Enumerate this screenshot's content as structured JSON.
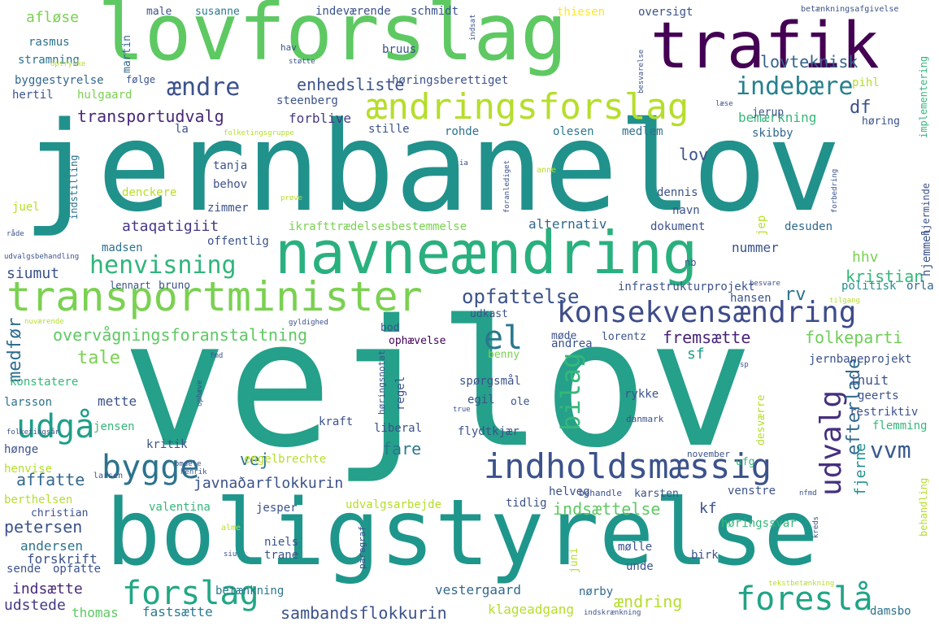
{
  "words": [
    {
      "text": "jernbanelov",
      "color": "#21918c"
    },
    {
      "text": "vejlov",
      "color": "#25a08a"
    },
    {
      "text": "boligstyrelse",
      "color": "#1f968b"
    },
    {
      "text": "lovforslag",
      "color": "#5ec962"
    },
    {
      "text": "trafik",
      "color": "#440154"
    },
    {
      "text": "navneændring",
      "color": "#2ab07f"
    },
    {
      "text": "transportminister",
      "color": "#7ad151"
    },
    {
      "text": "ændringsforslag",
      "color": "#b5de2b"
    },
    {
      "text": "indholdsmæssig",
      "color": "#3b528b"
    },
    {
      "text": "konsekvensændring",
      "color": "#3e4c8a"
    },
    {
      "text": "foreslå",
      "color": "#20a486"
    },
    {
      "text": "forslag",
      "color": "#22a785"
    },
    {
      "text": "bygge",
      "color": "#2c728e"
    },
    {
      "text": "udgå",
      "color": "#1f9e89"
    },
    {
      "text": "henvisning",
      "color": "#31b57b"
    },
    {
      "text": "el",
      "color": "#2a788e"
    },
    {
      "text": "ændre",
      "color": "#3b528b"
    },
    {
      "text": "indebære",
      "color": "#26818e"
    },
    {
      "text": "udvalg",
      "color": "#46307e"
    },
    {
      "text": "bilag",
      "color": "#35b779"
    },
    {
      "text": "efterlade",
      "color": "#31688e"
    },
    {
      "text": "overvågningsforanstaltning",
      "color": "#5ec962"
    },
    {
      "text": "opfattelse",
      "color": "#3b528b"
    },
    {
      "text": "vvm",
      "color": "#38598c"
    },
    {
      "text": "tale",
      "color": "#7ad151"
    },
    {
      "text": "medfør",
      "color": "#2e6e8e"
    },
    {
      "text": "transportudvalg",
      "color": "#482878"
    },
    {
      "text": "lovteknisk",
      "color": "#33638d"
    },
    {
      "text": "enhedsliste",
      "color": "#3b528b"
    },
    {
      "text": "fremsætte",
      "color": "#482475"
    },
    {
      "text": "folkeparti",
      "color": "#6ece58"
    },
    {
      "text": "ændring",
      "color": "#b5de2b"
    },
    {
      "text": "indsættelse",
      "color": "#5ec962"
    },
    {
      "text": "sambandsflokkurin",
      "color": "#3b528b"
    },
    {
      "text": "javnaðarflokkurin",
      "color": "#3b528b"
    },
    {
      "text": "petersen",
      "color": "#3b528b"
    },
    {
      "text": "affatte",
      "color": "#31688e"
    },
    {
      "text": "fare",
      "color": "#2a788e"
    },
    {
      "text": "vej",
      "color": "#2c728e"
    },
    {
      "text": "kristian",
      "color": "#35b779"
    },
    {
      "text": "siumut",
      "color": "#3b528b"
    },
    {
      "text": "ataqatigiit",
      "color": "#443a83"
    },
    {
      "text": "alternativ",
      "color": "#31688e"
    },
    {
      "text": "ikrafttrædelsesbestemmelse",
      "color": "#7ad151"
    },
    {
      "text": "infrastrukturprojekt",
      "color": "#3b528b"
    },
    {
      "text": "mette",
      "color": "#3b528b"
    },
    {
      "text": "inuit",
      "color": "#3b528b"
    },
    {
      "text": "forskrift",
      "color": "#3b528b"
    },
    {
      "text": "andersen",
      "color": "#2c728e"
    },
    {
      "text": "indsætte",
      "color": "#482878"
    },
    {
      "text": "udstede",
      "color": "#443a83"
    },
    {
      "text": "fastsætte",
      "color": "#2a788e"
    },
    {
      "text": "thomas",
      "color": "#5ec962"
    },
    {
      "text": "betænkning",
      "color": "#2a788e"
    },
    {
      "text": "klageadgang",
      "color": "#b5de2b"
    },
    {
      "text": "vestergaard",
      "color": "#31688e"
    },
    {
      "text": "nørby",
      "color": "#31688e"
    },
    {
      "text": "damsbo",
      "color": "#2c728e"
    },
    {
      "text": "df",
      "color": "#3b528b"
    },
    {
      "text": "lov",
      "color": "#3b528b"
    },
    {
      "text": "dokument",
      "color": "#3b528b"
    },
    {
      "text": "nummer",
      "color": "#3b528b"
    },
    {
      "text": "hhv",
      "color": "#7ad151"
    },
    {
      "text": "desuden",
      "color": "#31688e"
    },
    {
      "text": "rv",
      "color": "#2c728e"
    },
    {
      "text": "sf",
      "color": "#1f9e89"
    },
    {
      "text": "kf",
      "color": "#3b528b"
    },
    {
      "text": "fjerne",
      "color": "#21918c"
    },
    {
      "text": "flemming",
      "color": "#35b779"
    },
    {
      "text": "restriktiv",
      "color": "#3b528b"
    },
    {
      "text": "geerts",
      "color": "#3b528b"
    },
    {
      "text": "politisk",
      "color": "#21918c"
    },
    {
      "text": "orla",
      "color": "#31688e"
    },
    {
      "text": "jernbaneprojekt",
      "color": "#3b528b"
    },
    {
      "text": "hjemmel",
      "color": "#3b528b"
    },
    {
      "text": "hjerminde",
      "color": "#3b528b"
    },
    {
      "text": "bemærkning",
      "color": "#35b779"
    },
    {
      "text": "høring",
      "color": "#3b528b"
    },
    {
      "text": "skibby",
      "color": "#31688e"
    },
    {
      "text": "medlem",
      "color": "#2c728e"
    },
    {
      "text": "olesen",
      "color": "#2a788e"
    },
    {
      "text": "rohde",
      "color": "#2c728e"
    },
    {
      "text": "stille",
      "color": "#3b528b"
    },
    {
      "text": "forblive",
      "color": "#443a83"
    },
    {
      "text": "steenberg",
      "color": "#3b528b"
    },
    {
      "text": "høringsberettiget",
      "color": "#3b528b"
    },
    {
      "text": "bruus",
      "color": "#3b528b"
    },
    {
      "text": "schmidt",
      "color": "#3b528b"
    },
    {
      "text": "indeværende",
      "color": "#3b528b"
    },
    {
      "text": "susanne",
      "color": "#2a788e"
    },
    {
      "text": "male",
      "color": "#3b528b"
    },
    {
      "text": "martin",
      "color": "#31688e"
    },
    {
      "text": "rasmus",
      "color": "#2c728e"
    },
    {
      "text": "afløse",
      "color": "#7ad151"
    },
    {
      "text": "stramning",
      "color": "#2c728e"
    },
    {
      "text": "byggestyrelse",
      "color": "#31688e"
    },
    {
      "text": "følge",
      "color": "#3b528b"
    },
    {
      "text": "hertil",
      "color": "#3b528b"
    },
    {
      "text": "hulgaard",
      "color": "#7ad151"
    },
    {
      "text": "la",
      "color": "#3b528b"
    },
    {
      "text": "tanja",
      "color": "#3b528b"
    },
    {
      "text": "behov",
      "color": "#3b528b"
    },
    {
      "text": "zimmer",
      "color": "#3b528b"
    },
    {
      "text": "denckere",
      "color": "#b5de2b"
    },
    {
      "text": "juel",
      "color": "#b5de2b"
    },
    {
      "text": "indstilling",
      "color": "#2c728e"
    },
    {
      "text": "offentlig",
      "color": "#3b528b"
    },
    {
      "text": "madsen",
      "color": "#2c728e"
    },
    {
      "text": "lennart",
      "color": "#3b528b"
    },
    {
      "text": "bruno",
      "color": "#3b528b"
    },
    {
      "text": "navn",
      "color": "#3b528b"
    },
    {
      "text": "dennis",
      "color": "#3b528b"
    },
    {
      "text": "jep",
      "color": "#b5de2b"
    },
    {
      "text": "nb",
      "color": "#3b528b"
    },
    {
      "text": "hansen",
      "color": "#3b528b"
    },
    {
      "text": "udkast",
      "color": "#3b528b"
    },
    {
      "text": "bod",
      "color": "#3b528b"
    },
    {
      "text": "ophævelse",
      "color": "#440154"
    },
    {
      "text": "møde",
      "color": "#3b528b"
    },
    {
      "text": "lorentz",
      "color": "#3b528b"
    },
    {
      "text": "andrea",
      "color": "#3b528b"
    },
    {
      "text": "benny",
      "color": "#7ad151"
    },
    {
      "text": "spørgsmål",
      "color": "#3b528b"
    },
    {
      "text": "egil",
      "color": "#3b528b"
    },
    {
      "text": "ole",
      "color": "#3b528b"
    },
    {
      "text": "rykke",
      "color": "#3b528b"
    },
    {
      "text": "regel",
      "color": "#3b528b"
    },
    {
      "text": "flydtkjær",
      "color": "#3b528b"
    },
    {
      "text": "liberal",
      "color": "#3b528b"
    },
    {
      "text": "kraft",
      "color": "#3b528b"
    },
    {
      "text": "desværre",
      "color": "#b5de2b"
    },
    {
      "text": "konstatere",
      "color": "#35b779"
    },
    {
      "text": "larsson",
      "color": "#2c728e"
    },
    {
      "text": "jensen",
      "color": "#35b779"
    },
    {
      "text": "kritik",
      "color": "#3b528b"
    },
    {
      "text": "hønge",
      "color": "#3b528b"
    },
    {
      "text": "henvise",
      "color": "#b5de2b"
    },
    {
      "text": "berthelsen",
      "color": "#b5de2b"
    },
    {
      "text": "christian",
      "color": "#3b528b"
    },
    {
      "text": "valentina",
      "color": "#35b779"
    },
    {
      "text": "engelbrechte",
      "color": "#b5de2b"
    },
    {
      "text": "udvalgsarbejde",
      "color": "#b5de2b"
    },
    {
      "text": "jesper",
      "color": "#3b528b"
    },
    {
      "text": "tidlig",
      "color": "#3b528b"
    },
    {
      "text": "helveg",
      "color": "#3b528b"
    },
    {
      "text": "venstre",
      "color": "#3b528b"
    },
    {
      "text": "høringssvar",
      "color": "#35b779"
    },
    {
      "text": "ufg",
      "color": "#35b779"
    },
    {
      "text": "karsten",
      "color": "#3b528b"
    },
    {
      "text": "behandle",
      "color": "#3b528b"
    },
    {
      "text": "behandling",
      "color": "#b5de2b"
    },
    {
      "text": "niels",
      "color": "#3b528b"
    },
    {
      "text": "trane",
      "color": "#3b528b"
    },
    {
      "text": "mølle",
      "color": "#3b528b"
    },
    {
      "text": "unde",
      "color": "#3b528b"
    },
    {
      "text": "birk",
      "color": "#3b528b"
    },
    {
      "text": "juni",
      "color": "#b5de2b"
    },
    {
      "text": "opfatte",
      "color": "#3b528b"
    },
    {
      "text": "sende",
      "color": "#3b528b"
    },
    {
      "text": "implementering",
      "color": "#35b779"
    },
    {
      "text": "pihl",
      "color": "#b5de2b"
    },
    {
      "text": "jerup",
      "color": "#3b528b"
    },
    {
      "text": "thiesen",
      "color": "#fde725"
    },
    {
      "text": "oversigt",
      "color": "#3b528b"
    },
    {
      "text": "hav",
      "color": "#3b528b"
    },
    {
      "text": "danmark",
      "color": "#3b528b"
    },
    {
      "text": "november",
      "color": "#3b528b"
    },
    {
      "text": "høringsnotat",
      "color": "#3b528b"
    },
    {
      "text": "paragraf",
      "color": "#3b528b"
    },
    {
      "text": "betænkningsafgivelse",
      "color": "#3b528b"
    },
    {
      "text": "indsat",
      "color": "#3b528b"
    },
    {
      "text": "støtte",
      "color": "#3b528b"
    },
    {
      "text": "optrykke",
      "color": "#b5de2b"
    },
    {
      "text": "besvarelse",
      "color": "#3b528b"
    },
    {
      "text": "læse",
      "color": "#3b528b"
    },
    {
      "text": "folketingsgruppe",
      "color": "#b5de2b"
    },
    {
      "text": "forbedring",
      "color": "#3b528b"
    },
    {
      "text": "foranlediget",
      "color": "#3b528b"
    },
    {
      "text": "anne",
      "color": "#b5de2b"
    },
    {
      "text": "ia",
      "color": "#3b528b"
    },
    {
      "text": "prøve",
      "color": "#b5de2b"
    },
    {
      "text": "råde",
      "color": "#3b528b"
    },
    {
      "text": "udvalgsbehandling",
      "color": "#3b528b"
    },
    {
      "text": "nuværende",
      "color": "#b5de2b"
    },
    {
      "text": "gyldighed",
      "color": "#3b528b"
    },
    {
      "text": "besvare",
      "color": "#3b528b"
    },
    {
      "text": "tilgang",
      "color": "#b5de2b"
    },
    {
      "text": "fmd",
      "color": "#3b528b"
    },
    {
      "text": "ophæve",
      "color": "#3b528b"
    },
    {
      "text": "folketingsår",
      "color": "#3b528b"
    },
    {
      "text": "true",
      "color": "#3b528b"
    },
    {
      "text": "sp",
      "color": "#3b528b"
    },
    {
      "text": "larsen",
      "color": "#3b528b"
    },
    {
      "text": "omdele",
      "color": "#3b528b"
    },
    {
      "text": "henrik",
      "color": "#3b528b"
    },
    {
      "text": "alme",
      "color": "#b5de2b"
    },
    {
      "text": "siu",
      "color": "#3b528b"
    },
    {
      "text": "kreds",
      "color": "#3b528b"
    },
    {
      "text": "nfmd",
      "color": "#3b528b"
    },
    {
      "text": "tekstbetænkning",
      "color": "#b5de2b"
    },
    {
      "text": "indskrænkning",
      "color": "#3b528b"
    }
  ]
}
